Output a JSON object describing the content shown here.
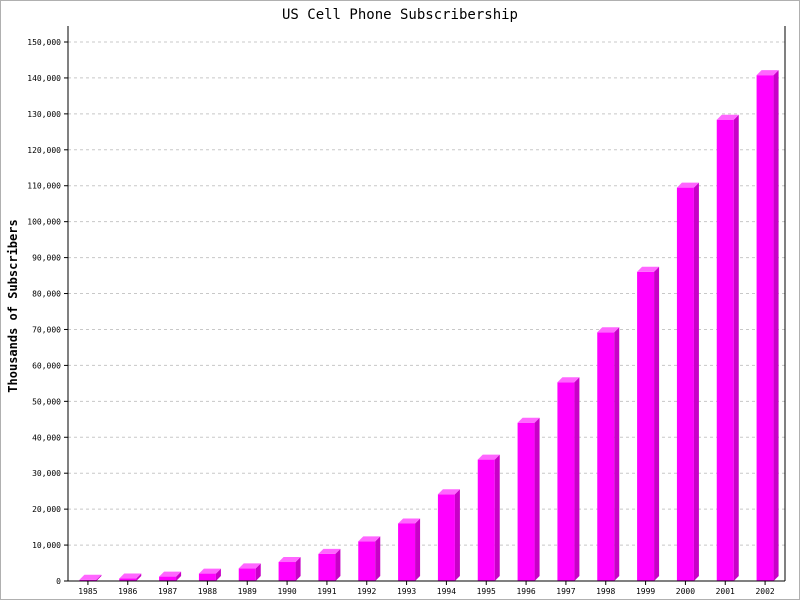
{
  "chart_data": {
    "type": "bar",
    "title": "US Cell Phone Subscribership",
    "xlabel": "",
    "ylabel": "Thousands of Subscribers",
    "categories": [
      "1985",
      "1986",
      "1987",
      "1988",
      "1989",
      "1990",
      "1991",
      "1992",
      "1993",
      "1994",
      "1995",
      "1996",
      "1997",
      "1998",
      "1999",
      "2000",
      "2001",
      "2002"
    ],
    "values": [
      340,
      682,
      1231,
      2069,
      3509,
      5283,
      7557,
      11033,
      16009,
      24134,
      33786,
      44043,
      55312,
      69209,
      86047,
      109478,
      128375,
      140767
    ],
    "ylim": [
      0,
      150000
    ],
    "yticks": [
      0,
      10000,
      20000,
      30000,
      40000,
      50000,
      60000,
      70000,
      80000,
      90000,
      100000,
      110000,
      120000,
      130000,
      140000,
      150000
    ],
    "ytick_labels": [
      "0",
      "10,000",
      "20,000",
      "30,000",
      "40,000",
      "50,000",
      "60,000",
      "70,000",
      "80,000",
      "90,000",
      "100,000",
      "110,000",
      "120,000",
      "130,000",
      "140,000",
      "150,000"
    ],
    "grid": true,
    "colors": {
      "bar_front": "#ff00ff",
      "bar_side": "#c800c8",
      "bar_top": "#ff66ff",
      "grid": "#c8c8c8",
      "axis": "#000000"
    }
  }
}
